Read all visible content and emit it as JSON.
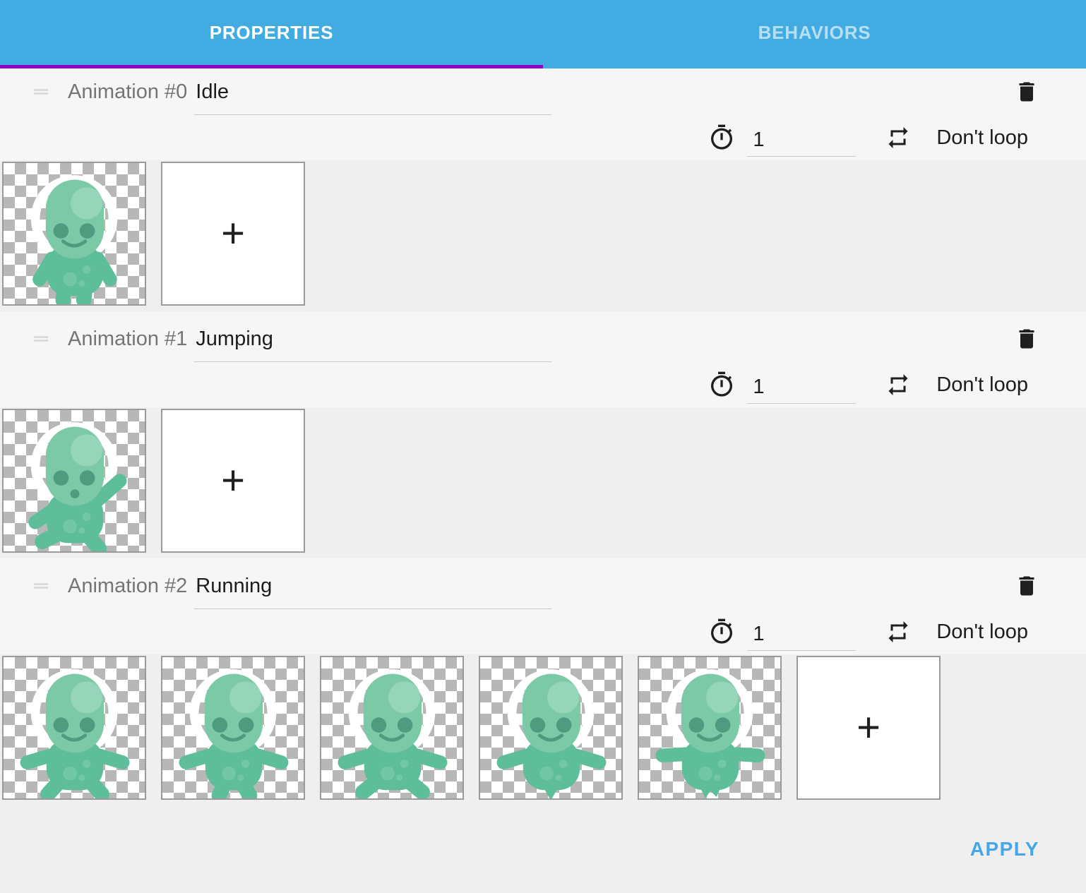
{
  "tabs": [
    {
      "label": "PROPERTIES",
      "active": true
    },
    {
      "label": "BEHAVIORS",
      "active": false
    }
  ],
  "animations": [
    {
      "label": "Animation #0",
      "name": "Idle",
      "duration": "1",
      "loop_label": "Don't loop",
      "frames": [
        "alien-idle"
      ]
    },
    {
      "label": "Animation #1",
      "name": "Jumping",
      "duration": "1",
      "loop_label": "Don't loop",
      "frames": [
        "alien-jumping"
      ]
    },
    {
      "label": "Animation #2",
      "name": "Running",
      "duration": "1",
      "loop_label": "Don't loop",
      "frames": [
        "alien-run-1",
        "alien-run-2",
        "alien-run-3",
        "alien-run-4",
        "alien-run-5"
      ]
    }
  ],
  "labels": {
    "add_frame": "+"
  },
  "footer": {
    "apply_label": "APPLY"
  },
  "icons": {
    "drag": "drag-handle-icon",
    "timer": "timer-icon",
    "loop": "repeat-icon",
    "delete": "trash-icon",
    "add": "plus-icon"
  },
  "colors": {
    "header_blue": "#42ace2",
    "tab_indicator_purple": "#8e06c8",
    "apply_blue": "#45a6e8",
    "sprite_body_green": "#5fbe9a",
    "sprite_head_green": "#7cc9a8",
    "sprite_feature_green": "#4e9b80",
    "checker_gray": "#b7b7b7"
  }
}
